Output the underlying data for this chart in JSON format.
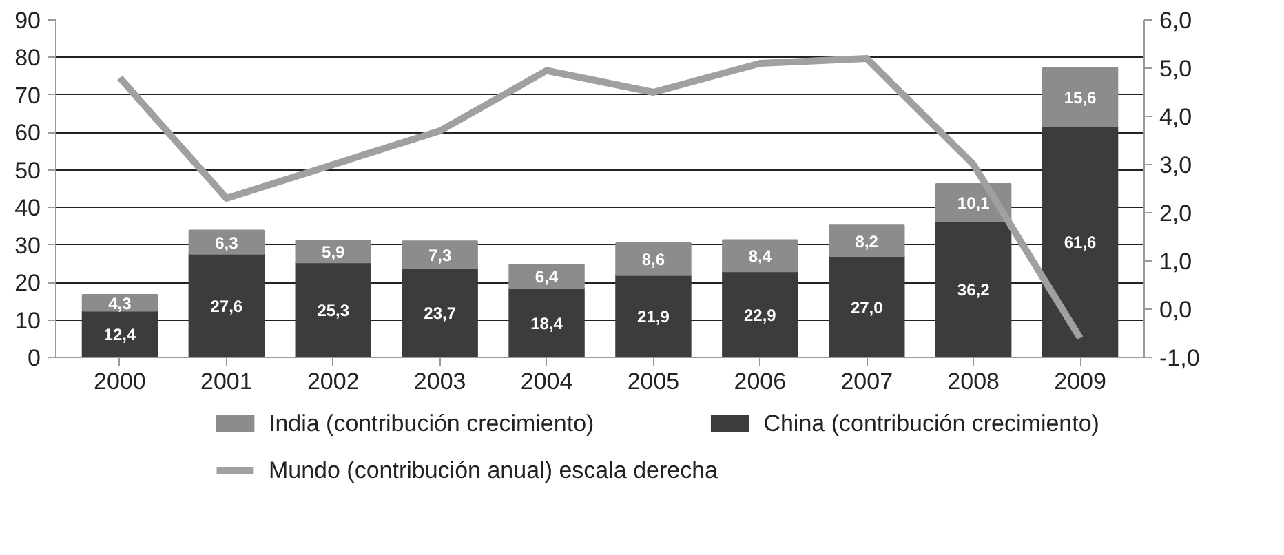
{
  "chart_data": {
    "type": "bar",
    "stacked": true,
    "categories": [
      "2000",
      "2001",
      "2002",
      "2003",
      "2004",
      "2005",
      "2006",
      "2007",
      "2008",
      "2009"
    ],
    "series": [
      {
        "name": "China (contribución crecimiento)",
        "color": "#3c3c3c",
        "values": [
          12.4,
          27.6,
          25.3,
          23.7,
          18.4,
          21.9,
          22.9,
          27.0,
          36.2,
          61.6
        ],
        "value_labels": [
          "12,4",
          "27,6",
          "25,3",
          "23,7",
          "18,4",
          "21,9",
          "22,9",
          "27,0",
          "36,2",
          "61,6"
        ]
      },
      {
        "name": "India (contribución crecimiento)",
        "color": "#8c8c8c",
        "values": [
          4.3,
          6.3,
          5.9,
          7.3,
          6.4,
          8.6,
          8.4,
          8.2,
          10.1,
          15.6
        ],
        "value_labels": [
          "4,3",
          "6,3",
          "5,9",
          "7,3",
          "6,4",
          "8,6",
          "8,4",
          "8,2",
          "10,1",
          "15,6"
        ]
      },
      {
        "name": "Mundo (contribución anual) escala derecha",
        "color": "#a0a0a0",
        "type": "line",
        "axis": "y2",
        "values": [
          4.8,
          2.3,
          3.0,
          3.7,
          4.95,
          4.5,
          5.1,
          5.2,
          3.0,
          -0.6
        ]
      }
    ],
    "ylim": [
      0,
      90
    ],
    "yticks": [
      0,
      10,
      20,
      30,
      40,
      50,
      60,
      70,
      80,
      90
    ],
    "y2lim": [
      -1,
      6
    ],
    "y2ticks": [
      {
        "value": -1,
        "label": "-1,0"
      },
      {
        "value": 0,
        "label": "0,0"
      },
      {
        "value": 1,
        "label": "1,0"
      },
      {
        "value": 2,
        "label": "2,0"
      },
      {
        "value": 3,
        "label": "3,0"
      },
      {
        "value": 4,
        "label": "4,0"
      },
      {
        "value": 5,
        "label": "5,0"
      },
      {
        "value": 6,
        "label": "6,0"
      }
    ],
    "grid": "y",
    "legend": "bottom"
  }
}
